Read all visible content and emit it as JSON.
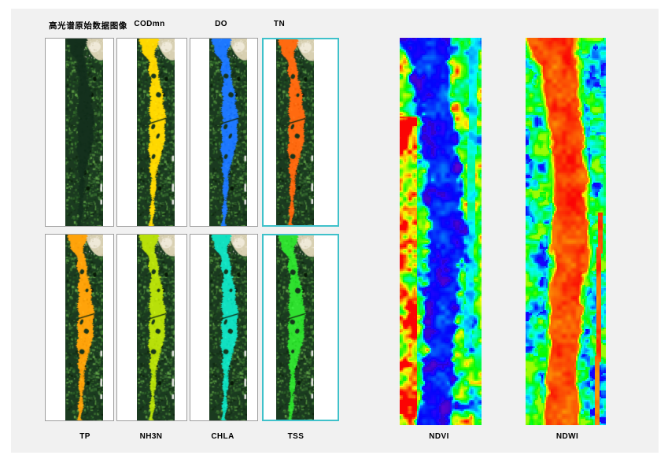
{
  "colors": {
    "page_bg": "#ffffff",
    "panel_bg": "#f1f1f1",
    "tile_bg": "#ffffff",
    "tile_border": "#9e9e9e",
    "selected_border": "#3fc1ca",
    "label_color": "#000000"
  },
  "tiles": [
    {
      "id": "raw",
      "label": "高光谱原始数据图像",
      "row": "top",
      "river_color": null,
      "selected": false
    },
    {
      "id": "codmn",
      "label": "CODmn",
      "row": "top",
      "river_color": "#ffd800",
      "selected": false
    },
    {
      "id": "do",
      "label": "DO",
      "row": "top",
      "river_color": "#1e78ff",
      "selected": false
    },
    {
      "id": "tn",
      "label": "TN",
      "row": "top",
      "river_color": "#ff6a10",
      "selected": true
    },
    {
      "id": "tp",
      "label": "TP",
      "row": "bottom",
      "river_color": "#ffa30a",
      "selected": false
    },
    {
      "id": "nh3n",
      "label": "NH3N",
      "row": "bottom",
      "river_color": "#b8e00a",
      "selected": false
    },
    {
      "id": "chla",
      "label": "CHLA",
      "row": "bottom",
      "river_color": "#12e0c0",
      "selected": false
    },
    {
      "id": "tss",
      "label": "TSS",
      "row": "bottom",
      "river_color": "#30e030",
      "selected": true
    }
  ],
  "maps": [
    {
      "id": "ndvi",
      "label": "NDVI",
      "kind": "ndvi"
    },
    {
      "id": "ndwi",
      "label": "NDWI",
      "kind": "ndwi"
    }
  ]
}
